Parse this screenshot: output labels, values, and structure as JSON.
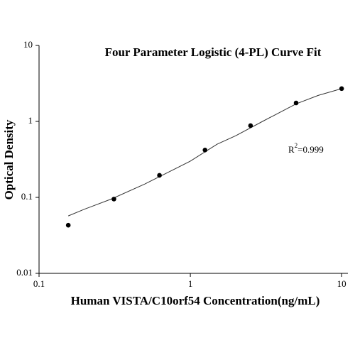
{
  "chart_data": {
    "type": "scatter",
    "title": "Four Parameter Logistic (4-PL) Curve Fit",
    "x_label": "Human VISTA/C10orf54 Concentration(ng/mL)",
    "y_label": "Optical Density",
    "annotation": {
      "base": "R",
      "sup": "2",
      "rest": "=0.999"
    },
    "xscale": "log",
    "yscale": "log",
    "xlim": [
      0.1,
      11
    ],
    "ylim": [
      0.01,
      10
    ],
    "xticks": [
      0.1,
      1,
      10
    ],
    "yticks": [
      0.01,
      0.1,
      1,
      10
    ],
    "series": [
      {
        "type": "scatter",
        "color": "#000000",
        "x": [
          0.156,
          0.3125,
          0.625,
          1.25,
          2.5,
          5,
          10
        ],
        "values": [
          0.043,
          0.095,
          0.195,
          0.42,
          0.88,
          1.75,
          2.7
        ]
      },
      {
        "type": "line",
        "color": "#333333",
        "x": [
          0.156,
          0.2,
          0.3,
          0.5,
          0.7,
          1,
          1.5,
          2,
          3,
          5,
          7,
          10
        ],
        "values": [
          0.057,
          0.07,
          0.095,
          0.15,
          0.21,
          0.3,
          0.5,
          0.65,
          1.0,
          1.7,
          2.2,
          2.7
        ]
      }
    ]
  }
}
